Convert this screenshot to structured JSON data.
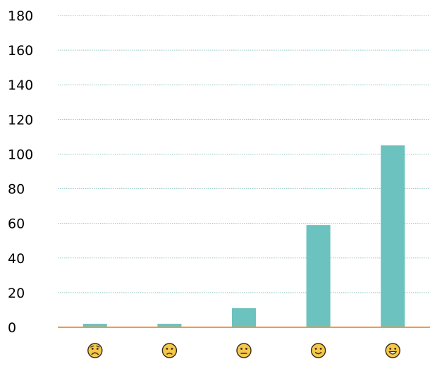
{
  "chart_data": {
    "type": "bar",
    "title": "",
    "xlabel": "",
    "ylabel": "",
    "categories": [
      "very-dissatisfied",
      "dissatisfied",
      "neutral",
      "satisfied",
      "very-satisfied"
    ],
    "category_icons": [
      "frowning-face-icon",
      "slightly-frowning-face-icon",
      "neutral-face-icon",
      "slightly-smiling-face-icon",
      "grinning-face-icon"
    ],
    "values": [
      2,
      2,
      11,
      59,
      105
    ],
    "ylim": [
      0,
      180
    ],
    "yticks": [
      "0",
      "20",
      "40",
      "60",
      "80",
      "100",
      "120",
      "140",
      "160",
      "180"
    ],
    "grid": true,
    "legend": "none",
    "colors": {
      "bar": "#6bc2be",
      "baseline": "#f0994a",
      "grid": "#8fc6c2",
      "face_fill": "#f5c84a",
      "face_stroke": "#3a2a1a"
    }
  }
}
